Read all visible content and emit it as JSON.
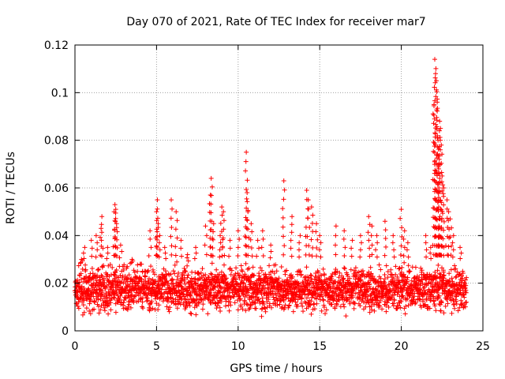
{
  "chart_data": {
    "type": "scatter",
    "title": "Day 070 of 2021, Rate Of TEC Index for receiver mar7",
    "xlabel": "GPS time / hours",
    "ylabel": "ROTI / TECUs",
    "xlim": [
      0,
      25
    ],
    "ylim": [
      0,
      0.12
    ],
    "xticks": [
      0,
      5,
      10,
      15,
      20,
      25
    ],
    "yticks": [
      0,
      0.02,
      0.04,
      0.06,
      0.08,
      0.1,
      0.12
    ],
    "xtick_labels": [
      "0",
      "5",
      "10",
      "15",
      "20",
      "25"
    ],
    "ytick_labels": [
      "0",
      "0.02",
      "0.04",
      "0.06",
      "0.08",
      "0.1",
      "0.12"
    ],
    "grid": true,
    "marker": "+",
    "color": "#ff0000",
    "series": [
      {
        "name": "ROTI",
        "base_range": [
          0.005,
          0.03
        ],
        "x": [
          0.4,
          0.6,
          1.0,
          1.3,
          1.6,
          1.65,
          2.0,
          2.4,
          2.45,
          2.5,
          2.55,
          2.8,
          3.5,
          4.0,
          4.6,
          5.0,
          5.05,
          5.1,
          5.2,
          5.5,
          5.9,
          6.2,
          6.5,
          6.9,
          7.4,
          8.0,
          8.3,
          8.35,
          8.5,
          8.9,
          9.0,
          9.1,
          9.5,
          10.0,
          10.5,
          10.55,
          10.6,
          10.8,
          11.2,
          11.5,
          12.0,
          12.8,
          13.3,
          13.8,
          14.2,
          14.3,
          14.5,
          14.8,
          15.0,
          16.0,
          16.5,
          17.0,
          17.5,
          18.0,
          18.2,
          18.5,
          19.0,
          19.5,
          20.0,
          20.2,
          20.4,
          21.5,
          21.8,
          22.0,
          22.05,
          22.1,
          22.15,
          22.2,
          22.25,
          22.3,
          22.35,
          22.4,
          22.45,
          22.5,
          22.6,
          22.8,
          22.9,
          23.0,
          23.2,
          23.6
        ],
        "y": [
          0.03,
          0.035,
          0.038,
          0.04,
          0.043,
          0.048,
          0.035,
          0.05,
          0.053,
          0.051,
          0.045,
          0.036,
          0.03,
          0.028,
          0.042,
          0.05,
          0.055,
          0.045,
          0.04,
          0.035,
          0.055,
          0.05,
          0.038,
          0.032,
          0.035,
          0.044,
          0.057,
          0.064,
          0.045,
          0.04,
          0.052,
          0.05,
          0.038,
          0.042,
          0.075,
          0.058,
          0.05,
          0.045,
          0.038,
          0.042,
          0.036,
          0.063,
          0.048,
          0.04,
          0.059,
          0.055,
          0.052,
          0.045,
          0.04,
          0.044,
          0.042,
          0.038,
          0.04,
          0.048,
          0.044,
          0.04,
          0.046,
          0.04,
          0.051,
          0.042,
          0.037,
          0.04,
          0.035,
          0.095,
          0.114,
          0.108,
          0.105,
          0.096,
          0.08,
          0.07,
          0.088,
          0.085,
          0.078,
          0.065,
          0.06,
          0.055,
          0.05,
          0.047,
          0.04,
          0.035
        ]
      }
    ]
  }
}
